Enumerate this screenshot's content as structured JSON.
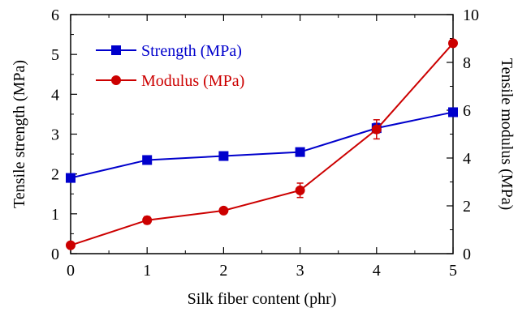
{
  "chart_data": {
    "type": "line",
    "xlabel": "Silk fiber content (phr)",
    "ylabel_left": "Tensile strength (MPa)",
    "ylabel_right": "Tensile modulus (MPa)",
    "x": [
      0,
      1,
      2,
      3,
      4,
      5
    ],
    "x_ticks": [
      "0",
      "1",
      "2",
      "3",
      "4",
      "5"
    ],
    "xlim": [
      0,
      5
    ],
    "ylim_left": [
      0,
      6
    ],
    "ylim_right": [
      0,
      10
    ],
    "y_ticks_left": [
      "0",
      "1",
      "2",
      "3",
      "4",
      "5",
      "6"
    ],
    "y_ticks_right": [
      "0",
      "2",
      "4",
      "6",
      "8",
      "10"
    ],
    "grid": false,
    "legend_position": "top-left",
    "series": [
      {
        "name": "Strength (MPa)",
        "axis": "left",
        "color": "#0000cc",
        "marker": "square",
        "values": [
          1.9,
          2.35,
          2.45,
          2.55,
          3.15,
          3.55
        ],
        "errors": [
          0.05,
          0.05,
          0.04,
          0.04,
          0.12,
          0.08
        ]
      },
      {
        "name": "Modulus (MPa)",
        "axis": "right",
        "color": "#cc0000",
        "marker": "circle",
        "values": [
          0.35,
          1.4,
          1.8,
          2.65,
          5.2,
          8.8
        ],
        "errors": [
          0.05,
          0.15,
          0.1,
          0.3,
          0.4,
          0.12
        ]
      }
    ]
  }
}
